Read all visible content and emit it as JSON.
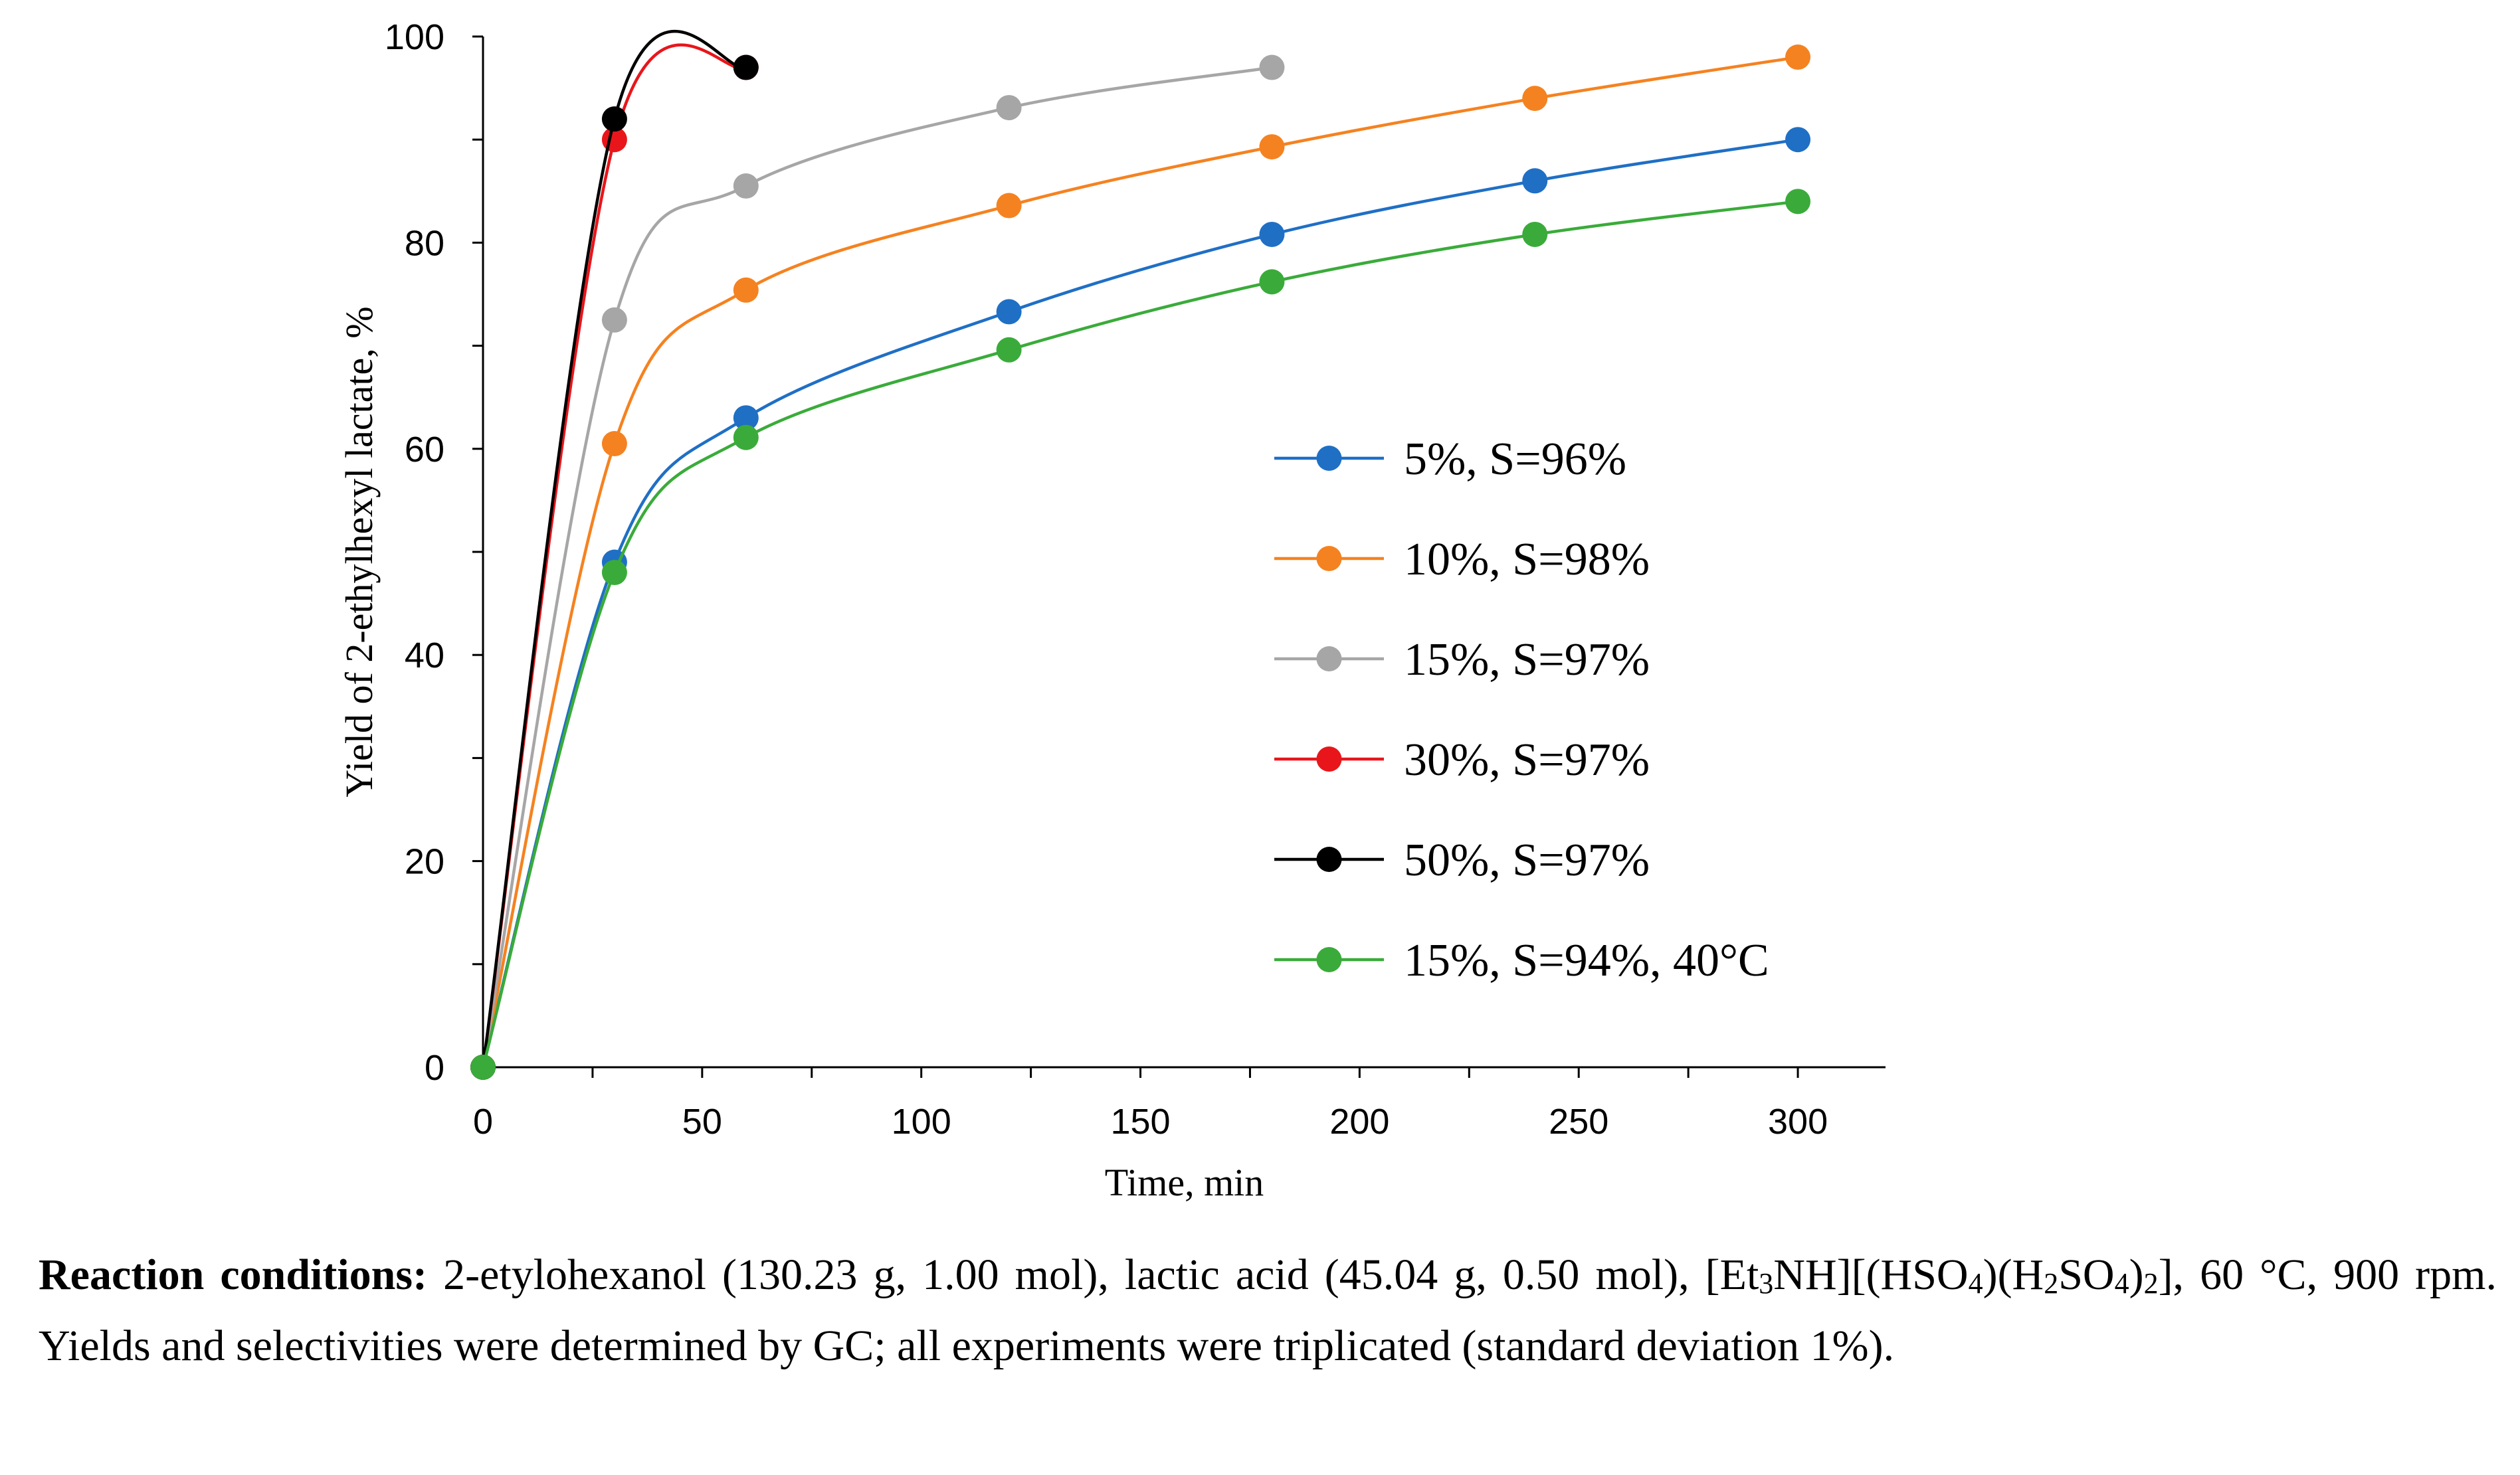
{
  "chart_data": {
    "type": "line",
    "xlabel": "Time, min",
    "ylabel": "Yield of 2-ethylhexyl lactate, %",
    "xlim": [
      0,
      320
    ],
    "ylim": [
      0,
      100
    ],
    "xticks": [
      0,
      50,
      100,
      150,
      200,
      250,
      300
    ],
    "yticks": [
      0,
      20,
      40,
      60,
      80,
      100
    ],
    "legend_position": "right-middle",
    "series": [
      {
        "name": "5%, S=96%",
        "color": "#1f6fc5",
        "x": [
          0,
          30,
          60,
          120,
          180,
          240,
          300
        ],
        "y": [
          0,
          49,
          63,
          73.3,
          80.8,
          86,
          90
        ]
      },
      {
        "name": "10%, S=98%",
        "color": "#f58220",
        "x": [
          0,
          30,
          60,
          120,
          180,
          240,
          300
        ],
        "y": [
          0,
          60.5,
          75.4,
          83.6,
          89.3,
          94,
          98
        ]
      },
      {
        "name": "15%, S=97%",
        "color": "#a6a6a6",
        "x": [
          0,
          30,
          60,
          120,
          180
        ],
        "y": [
          0,
          72.5,
          85.5,
          93.1,
          97
        ]
      },
      {
        "name": "30%, S=97%",
        "color": "#e8161b",
        "x": [
          0,
          30,
          60
        ],
        "y": [
          0,
          90,
          97
        ]
      },
      {
        "name": "50%, S=97%",
        "color": "#000000",
        "x": [
          0,
          30,
          60
        ],
        "y": [
          0,
          92,
          97
        ]
      },
      {
        "name": "15%, S=94%, 40°C",
        "color": "#3aab3a",
        "x": [
          0,
          30,
          60,
          120,
          180,
          240,
          300
        ],
        "y": [
          0,
          48,
          61.1,
          69.6,
          76.2,
          80.8,
          84
        ]
      }
    ]
  },
  "caption": {
    "bold_label": "Reaction conditions:",
    "part1": " 2-etylohexanol (130.23 g, 1.00 mol), lactic acid (45.04 g, 0.50 mol), [Et",
    "sub1": "3",
    "part2": "NH][(HSO",
    "sub2": "4",
    "part3": ")(H",
    "sub3": "2",
    "part4": "SO",
    "sub4": "4",
    "part5": ")",
    "sub5": "2",
    "part6": "], 60 °C, 900 rpm. Yields and selectivities were determined by GC; all experiments were triplicated (standard deviation 1%)."
  }
}
